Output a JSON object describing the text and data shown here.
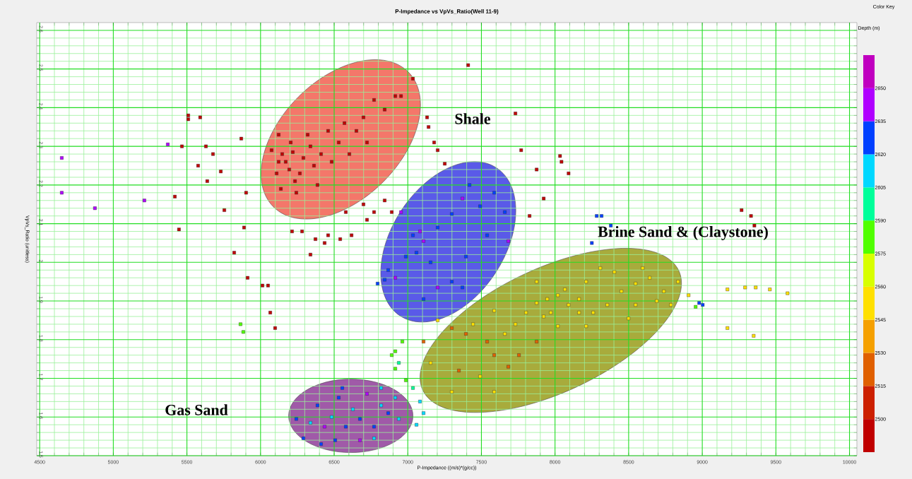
{
  "chart_data": {
    "type": "scatter",
    "title": "P-Impedance vs VpVs_Ratio(Well 11-9)",
    "xlabel": "P-Impedance ((m/s)*(g/cc))",
    "ylabel": "VpVs_Ratio (unitless)",
    "clabel": "Depth (m)",
    "xlim": [
      4480,
      10050
    ],
    "ylim": [
      1.5,
      2.62
    ],
    "xticks": [
      4500,
      {
        "value": 4600,
        "label": null
      },
      {
        "value": 4700,
        "label": null
      },
      {
        "value": 4800,
        "label": null
      },
      {
        "value": 4900,
        "label": null
      },
      5000,
      {
        "value": 5100,
        "label": null
      },
      {
        "value": 5200,
        "label": null
      },
      {
        "value": 5300,
        "label": null
      },
      {
        "value": 5400,
        "label": null
      },
      5500,
      {
        "value": 5600,
        "label": null
      },
      {
        "value": 5700,
        "label": null
      },
      {
        "value": 5800,
        "label": null
      },
      {
        "value": 5900,
        "label": null
      },
      6000,
      {
        "value": 6100,
        "label": null
      },
      {
        "value": 6200,
        "label": null
      },
      {
        "value": 6300,
        "label": null
      },
      {
        "value": 6400,
        "label": null
      },
      6500,
      {
        "value": 6600,
        "label": null
      },
      {
        "value": 6700,
        "label": null
      },
      {
        "value": 6800,
        "label": null
      },
      {
        "value": 6900,
        "label": null
      },
      7000,
      {
        "value": 7100,
        "label": null
      },
      {
        "value": 7200,
        "label": null
      },
      {
        "value": 7300,
        "label": null
      },
      {
        "value": 7400,
        "label": null
      },
      7500,
      {
        "value": 7600,
        "label": null
      },
      {
        "value": 7700,
        "label": null
      },
      {
        "value": 7800,
        "label": null
      },
      {
        "value": 7900,
        "label": null
      },
      8000,
      {
        "value": 8100,
        "label": null
      },
      {
        "value": 8200,
        "label": null
      },
      {
        "value": 8300,
        "label": null
      },
      {
        "value": 8400,
        "label": null
      },
      8500,
      {
        "value": 8600,
        "label": null
      },
      {
        "value": 8700,
        "label": null
      },
      {
        "value": 8800,
        "label": null
      },
      {
        "value": 8900,
        "label": null
      },
      9000,
      {
        "value": 9100,
        "label": null
      },
      {
        "value": 9200,
        "label": null
      },
      {
        "value": 9300,
        "label": null
      },
      {
        "value": 9400,
        "label": null
      },
      9500,
      {
        "value": 9600,
        "label": null
      },
      {
        "value": 9700,
        "label": null
      },
      {
        "value": 9800,
        "label": null
      },
      {
        "value": 9900,
        "label": null
      },
      10000
    ],
    "yticks": [
      1.5,
      {
        "value": 1.52,
        "label": null
      },
      {
        "value": 1.54,
        "label": null
      },
      {
        "value": 1.56,
        "label": null
      },
      {
        "value": 1.58,
        "label": null
      },
      1.6,
      {
        "value": 1.62,
        "label": null
      },
      {
        "value": 1.64,
        "label": null
      },
      {
        "value": 1.66,
        "label": null
      },
      {
        "value": 1.68,
        "label": null
      },
      1.7,
      {
        "value": 1.72,
        "label": null
      },
      {
        "value": 1.74,
        "label": null
      },
      {
        "value": 1.76,
        "label": null
      },
      {
        "value": 1.78,
        "label": null
      },
      1.8,
      {
        "value": 1.82,
        "label": null
      },
      {
        "value": 1.84,
        "label": null
      },
      {
        "value": 1.86,
        "label": null
      },
      {
        "value": 1.88,
        "label": null
      },
      1.9,
      {
        "value": 1.92,
        "label": null
      },
      {
        "value": 1.94,
        "label": null
      },
      {
        "value": 1.96,
        "label": null
      },
      {
        "value": 1.98,
        "label": null
      },
      2,
      {
        "value": 2.02,
        "label": null
      },
      {
        "value": 2.04,
        "label": null
      },
      {
        "value": 2.06,
        "label": null
      },
      {
        "value": 2.08,
        "label": null
      },
      2.1,
      {
        "value": 2.12,
        "label": null
      },
      {
        "value": 2.14,
        "label": null
      },
      {
        "value": 2.16,
        "label": null
      },
      {
        "value": 2.18,
        "label": null
      },
      2.2,
      {
        "value": 2.22,
        "label": null
      },
      {
        "value": 2.24,
        "label": null
      },
      {
        "value": 2.26,
        "label": null
      },
      {
        "value": 2.28,
        "label": null
      },
      2.3,
      {
        "value": 2.32,
        "label": null
      },
      {
        "value": 2.34,
        "label": null
      },
      {
        "value": 2.36,
        "label": null
      },
      {
        "value": 2.38,
        "label": null
      },
      2.4,
      {
        "value": 2.42,
        "label": null
      },
      {
        "value": 2.44,
        "label": null
      },
      {
        "value": 2.46,
        "label": null
      },
      {
        "value": 2.48,
        "label": null
      },
      2.5,
      {
        "value": 2.52,
        "label": null
      },
      {
        "value": 2.54,
        "label": null
      },
      {
        "value": 2.56,
        "label": null
      },
      {
        "value": 2.58,
        "label": null
      },
      2.6
    ],
    "clim": [
      2485,
      2665
    ],
    "cticks": [
      2500,
      2515,
      2530,
      2545,
      2560,
      2575,
      2590,
      2605,
      2620,
      2635,
      2650
    ],
    "grid": true,
    "marker": "square",
    "annotations": [
      "Color Key",
      "Shale",
      "Brine Sand & (Claystone)",
      "Gas Sand"
    ],
    "series": [
      {
        "x": [
          4650,
          4650,
          4875,
          5211,
          5370,
          5466,
          5509,
          5509,
          5590,
          5418,
          5446,
          5576,
          5629,
          5638,
          5677,
          5730,
          5754,
          5821,
          5869,
          5888,
          5902,
          5912,
          5864,
          5883,
          6013,
          6051,
          6066,
          6099,
          6214,
          6282,
          6339,
          6373,
          6435,
          6459,
          6541,
          6579,
          6618,
          6699,
          6723,
          6771,
          6843,
          6891,
          6123,
          6147,
          6171,
          6205,
          6234,
          6243,
          6267,
          6291,
          6320,
          6339,
          6363,
          6387,
          6411,
          6459,
          6483,
          6531,
          6570,
          6603,
          6651,
          6699,
          6723,
          6771,
          6843,
          6915,
          6954,
          7035,
          6075,
          6109,
          6138,
          6195,
          6123,
          6219,
          7410,
          7131,
          7179,
          7203,
          7251,
          7141,
          7731,
          7770,
          7875,
          8034,
          8044,
          8092,
          7923,
          7827,
          6795,
          6867,
          6915,
          6987,
          7059,
          7107,
          7155,
          7203,
          7299,
          7371,
          7419,
          7491,
          7587,
          7659,
          7683,
          7539,
          7395,
          7299,
          7203,
          7107,
          7371,
          6954,
          6843,
          7035,
          7083,
          8283,
          8316,
          8379,
          8250,
          7203,
          7299,
          7395,
          7443,
          7539,
          7587,
          7659,
          7731,
          7803,
          7875,
          7947,
          8019,
          8092,
          8163,
          8259,
          8355,
          8451,
          8547,
          8643,
          8739,
          8835,
          8907,
          7587,
          7683,
          7491,
          7347,
          7155,
          7107,
          7923,
          8019,
          8211,
          8499,
          8691,
          8787,
          7755,
          7875,
          8067,
          8307,
          8403,
          8595,
          7875,
          8211,
          7971,
          8163,
          8547,
          7299,
          7587,
          8979,
          9003,
          8955,
          9171,
          9291,
          9363,
          9459,
          9579,
          9171,
          9349,
          9354,
          9331,
          9267,
          6291,
          6339,
          6387,
          6435,
          6483,
          6531,
          6579,
          6627,
          6675,
          6723,
          6771,
          6819,
          6867,
          6915,
          6411,
          6507,
          6675,
          6771,
          6939,
          6243,
          6555,
          6819,
          6891,
          6915,
          6939,
          6987,
          7035,
          7083,
          7107,
          7059,
          6963,
          6915
        ],
        "values": [
          2.27,
          2.18,
          2.14,
          2.16,
          2.305,
          2.3,
          2.38,
          2.37,
          2.375,
          2.17,
          2.085,
          2.25,
          2.3,
          2.21,
          2.28,
          2.235,
          2.135,
          2.025,
          2.32,
          2.09,
          2.18,
          1.96,
          1.84,
          1.82,
          1.94,
          1.94,
          1.87,
          1.83,
          2.08,
          2.08,
          2.02,
          2.06,
          2.05,
          2.07,
          2.06,
          2.13,
          2.07,
          2.15,
          2.11,
          2.13,
          2.16,
          2.13,
          2.33,
          2.28,
          2.26,
          2.31,
          2.21,
          2.18,
          2.23,
          2.27,
          2.33,
          2.3,
          2.25,
          2.2,
          2.28,
          2.34,
          2.26,
          2.31,
          2.36,
          2.28,
          2.34,
          2.375,
          2.31,
          2.42,
          2.395,
          2.43,
          2.43,
          2.475,
          2.29,
          2.23,
          2.19,
          2.24,
          2.26,
          2.285,
          2.51,
          2.375,
          2.31,
          2.29,
          2.255,
          2.35,
          2.385,
          2.29,
          2.24,
          2.275,
          2.26,
          2.23,
          2.165,
          2.12,
          1.945,
          1.98,
          1.96,
          2.015,
          2.025,
          2.055,
          2.0,
          2.09,
          2.125,
          2.165,
          2.2,
          2.145,
          2.18,
          2.13,
          2.055,
          2.07,
          2.015,
          1.95,
          1.935,
          1.905,
          1.935,
          2.13,
          1.955,
          2.07,
          2.08,
          2.12,
          2.12,
          2.095,
          2.05,
          1.85,
          1.83,
          1.815,
          1.84,
          1.795,
          1.76,
          1.815,
          1.84,
          1.87,
          1.895,
          1.905,
          1.915,
          1.89,
          1.905,
          1.87,
          1.89,
          1.925,
          1.945,
          1.96,
          1.925,
          1.95,
          1.915,
          1.875,
          1.73,
          1.705,
          1.72,
          1.74,
          1.795,
          1.86,
          1.835,
          1.835,
          1.855,
          1.9,
          1.89,
          1.76,
          1.795,
          1.93,
          1.985,
          1.975,
          1.985,
          1.95,
          1.95,
          1.87,
          1.87,
          1.89,
          1.665,
          1.665,
          1.895,
          1.89,
          1.885,
          1.93,
          1.935,
          1.935,
          1.93,
          1.92,
          1.83,
          1.81,
          2.095,
          2.12,
          2.135,
          1.545,
          1.585,
          1.63,
          1.575,
          1.6,
          1.65,
          1.575,
          1.62,
          1.595,
          1.66,
          1.575,
          1.63,
          1.61,
          1.65,
          1.53,
          1.54,
          1.54,
          1.545,
          1.595,
          1.595,
          1.675,
          1.675,
          1.76,
          1.725,
          1.74,
          1.695,
          1.675,
          1.64,
          1.61,
          1.58,
          1.795,
          1.77
        ],
        "cvalues": [
          2645,
          2645,
          2645,
          2645,
          2645,
          2495,
          2495,
          2495,
          2495,
          2495,
          2495,
          2495,
          2495,
          2495,
          2495,
          2495,
          2495,
          2495,
          2495,
          2495,
          2495,
          2495,
          2580,
          2580,
          2495,
          2495,
          2495,
          2495,
          2495,
          2495,
          2495,
          2495,
          2495,
          2495,
          2495,
          2495,
          2495,
          2495,
          2495,
          2495,
          2495,
          2495,
          2495,
          2495,
          2495,
          2495,
          2495,
          2495,
          2495,
          2495,
          2495,
          2495,
          2495,
          2495,
          2495,
          2495,
          2495,
          2495,
          2495,
          2495,
          2495,
          2495,
          2495,
          2495,
          2495,
          2495,
          2495,
          2495,
          2495,
          2495,
          2495,
          2495,
          2495,
          2495,
          2495,
          2495,
          2495,
          2495,
          2495,
          2495,
          2495,
          2495,
          2495,
          2495,
          2495,
          2495,
          2495,
          2495,
          2630,
          2630,
          2640,
          2630,
          2630,
          2640,
          2630,
          2630,
          2630,
          2640,
          2630,
          2630,
          2630,
          2630,
          2640,
          2630,
          2630,
          2630,
          2640,
          2630,
          2630,
          2640,
          2630,
          2630,
          2640,
          2625,
          2625,
          2625,
          2625,
          2555,
          2520,
          2520,
          2555,
          2520,
          2520,
          2555,
          2555,
          2555,
          2555,
          2555,
          2555,
          2555,
          2555,
          2555,
          2555,
          2555,
          2555,
          2555,
          2555,
          2555,
          2555,
          2555,
          2520,
          2555,
          2520,
          2555,
          2520,
          2555,
          2555,
          2555,
          2555,
          2555,
          2555,
          2520,
          2520,
          2555,
          2555,
          2555,
          2555,
          2555,
          2555,
          2555,
          2555,
          2555,
          2555,
          2555,
          2625,
          2625,
          2580,
          2555,
          2555,
          2555,
          2555,
          2555,
          2555,
          2555,
          2495,
          2495,
          2495,
          2625,
          2610,
          2625,
          2640,
          2610,
          2625,
          2625,
          2610,
          2625,
          2640,
          2625,
          2610,
          2625,
          2610,
          2625,
          2625,
          2640,
          2610,
          2610,
          2625,
          2625,
          2610,
          2580,
          2580,
          2595,
          2580,
          2595,
          2610,
          2610,
          2610,
          2580,
          2580
        ]
      }
    ]
  }
}
